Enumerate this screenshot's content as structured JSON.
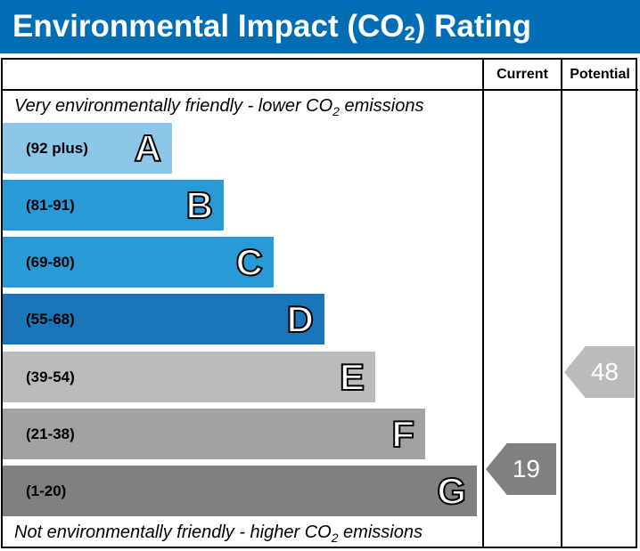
{
  "header": {
    "title_pre": "Environmental Impact (CO",
    "title_sub": "2",
    "title_post": ") Rating",
    "color": "#006db5"
  },
  "columns": {
    "current": "Current",
    "potential": "Potential"
  },
  "notes": {
    "top_pre": "Very environmentally friendly - lower CO",
    "top_sub": "2",
    "top_post": " emissions",
    "bottom_pre": "Not environmentally friendly - higher CO",
    "bottom_sub": "2",
    "bottom_post": " emissions"
  },
  "chart_data": {
    "type": "bar",
    "bands": [
      {
        "letter": "A",
        "range": "(92 plus)",
        "color": "#8cc6e8"
      },
      {
        "letter": "B",
        "range": "(81-91)",
        "color": "#2a9ad6"
      },
      {
        "letter": "C",
        "range": "(69-80)",
        "color": "#2a9ad6"
      },
      {
        "letter": "D",
        "range": "(55-68)",
        "color": "#1a75b9"
      },
      {
        "letter": "E",
        "range": "(39-54)",
        "color": "#bcbbb9"
      },
      {
        "letter": "F",
        "range": "(21-38)",
        "color": "#a1a2a4"
      },
      {
        "letter": "G",
        "range": "(1-20)",
        "color": "#808080"
      }
    ],
    "current": {
      "value": "19",
      "band": "G",
      "color": "#808080"
    },
    "potential": {
      "value": "48",
      "band": "E",
      "color": "#bcbbb9"
    }
  }
}
